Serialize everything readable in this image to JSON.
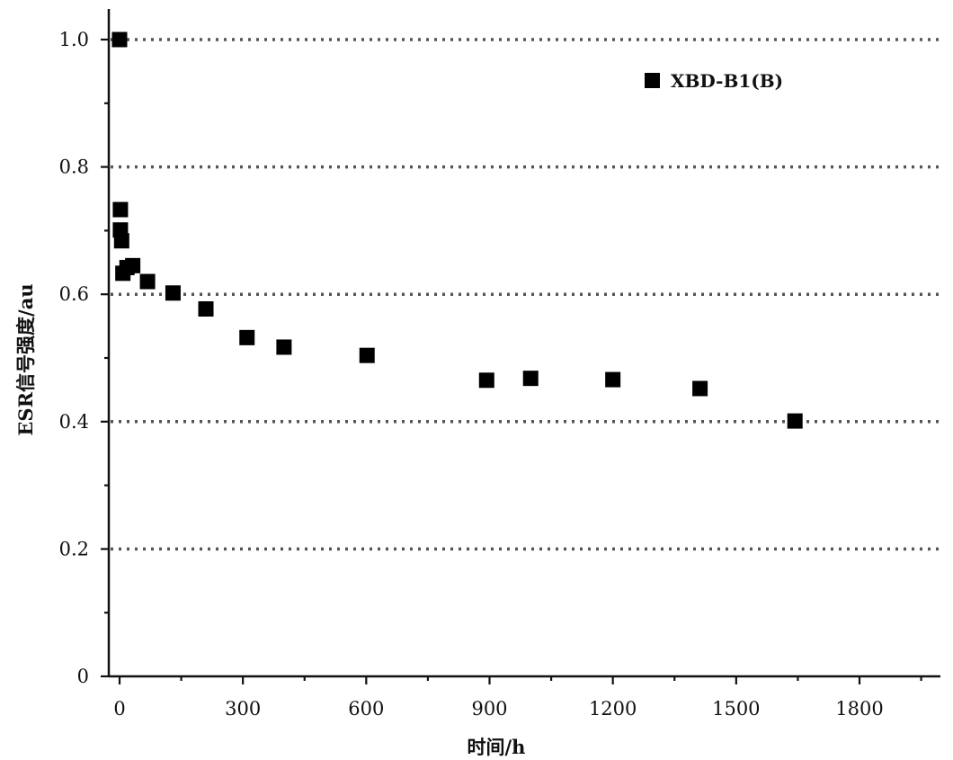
{
  "chart_data": {
    "type": "scatter",
    "xlabel": "时间/h",
    "ylabel": "ESR信号强度/au",
    "xlim": [
      -30,
      2000
    ],
    "ylim": [
      0,
      1.05
    ],
    "x_ticks": [
      0,
      300,
      600,
      900,
      1200,
      1500,
      1800
    ],
    "y_ticks": [
      0,
      0.2,
      0.4,
      0.6,
      0.8,
      1.0
    ],
    "x_tick_labels": [
      "0",
      "300",
      "600",
      "900",
      "1200",
      "1500",
      "1800"
    ],
    "y_tick_labels": [
      "0",
      "0.2",
      "0.4",
      "0.6",
      "0.8",
      "1.0"
    ],
    "grid": "horizontal dotted",
    "legend_position": "top-right",
    "series": [
      {
        "name": "XBD-B1(B)",
        "marker": "square",
        "color": "#000000",
        "points": [
          {
            "x": 0,
            "y": 1.0
          },
          {
            "x": 2,
            "y": 0.733
          },
          {
            "x": 2,
            "y": 0.701
          },
          {
            "x": 5,
            "y": 0.684
          },
          {
            "x": 8,
            "y": 0.633
          },
          {
            "x": 18,
            "y": 0.642
          },
          {
            "x": 32,
            "y": 0.645
          },
          {
            "x": 68,
            "y": 0.62
          },
          {
            "x": 130,
            "y": 0.602
          },
          {
            "x": 210,
            "y": 0.577
          },
          {
            "x": 310,
            "y": 0.532
          },
          {
            "x": 400,
            "y": 0.517
          },
          {
            "x": 602,
            "y": 0.504
          },
          {
            "x": 893,
            "y": 0.465
          },
          {
            "x": 1000,
            "y": 0.468
          },
          {
            "x": 1200,
            "y": 0.466
          },
          {
            "x": 1412,
            "y": 0.452
          },
          {
            "x": 1643,
            "y": 0.401
          }
        ]
      }
    ]
  }
}
